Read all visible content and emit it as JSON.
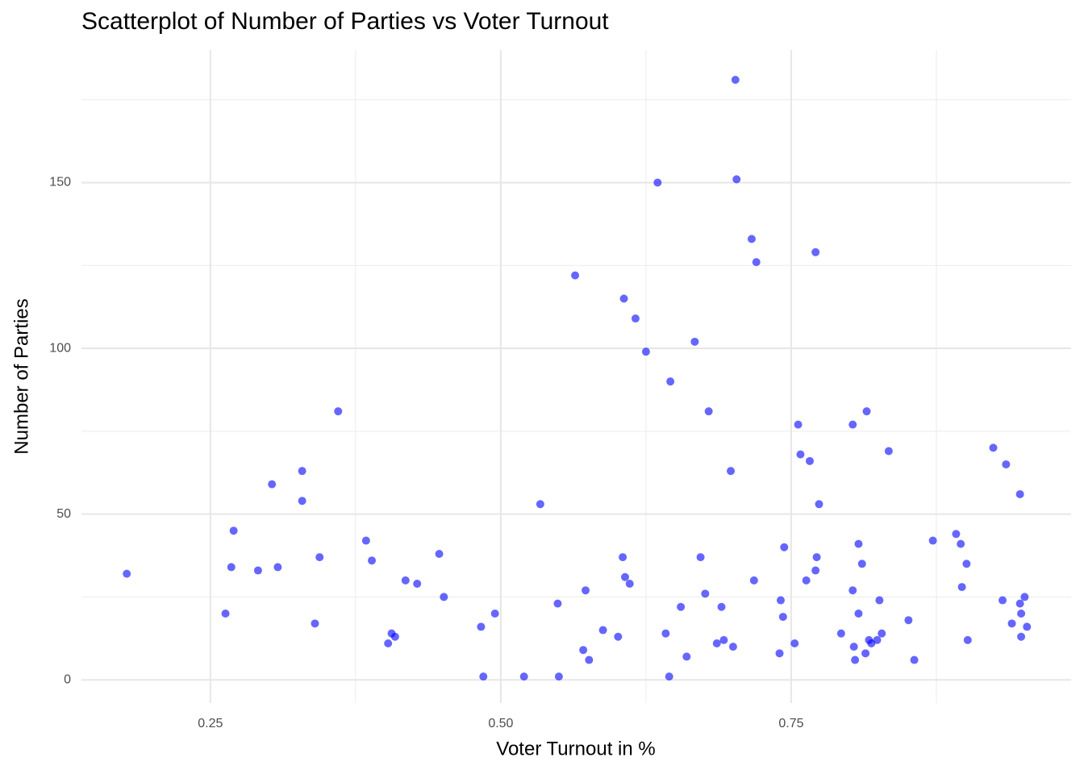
{
  "chart_data": {
    "type": "scatter",
    "title": "Scatterplot of Number of Parties vs Voter Turnout",
    "x_label": "Voter Turnout in %",
    "y_label": "Number of Parties",
    "color": "#0000ff",
    "opacity": 0.6,
    "grid": true,
    "xlim": [
      0.139,
      0.991
    ],
    "ylim": [
      -7,
      190
    ],
    "xticks": [
      0.25,
      {
        "value": 0.5,
        "label": "0.50"
      },
      0.75
    ],
    "yticks": [
      0,
      50,
      100,
      150
    ],
    "x_minor_grid": [
      0.375,
      0.625,
      0.875
    ],
    "y_minor_grid": [
      25,
      75,
      125,
      175
    ],
    "x": [
      0.178,
      0.263,
      0.268,
      0.27,
      0.291,
      0.303,
      0.308,
      0.329,
      0.329,
      0.34,
      0.344,
      0.36,
      0.384,
      0.389,
      0.403,
      0.406,
      0.409,
      0.418,
      0.428,
      0.447,
      0.451,
      0.483,
      0.485,
      0.495,
      0.52,
      0.534,
      0.549,
      0.55,
      0.564,
      0.571,
      0.573,
      0.576,
      0.588,
      0.601,
      0.605,
      0.606,
      0.607,
      0.611,
      0.616,
      0.625,
      0.635,
      0.642,
      0.645,
      0.646,
      0.655,
      0.66,
      0.667,
      0.672,
      0.676,
      0.679,
      0.686,
      0.69,
      0.692,
      0.698,
      0.7,
      0.702,
      0.703,
      0.716,
      0.718,
      0.72,
      0.74,
      0.741,
      0.743,
      0.744,
      0.753,
      0.756,
      0.758,
      0.763,
      0.766,
      0.771,
      0.771,
      0.772,
      0.774,
      0.793,
      0.803,
      0.803,
      0.804,
      0.805,
      0.808,
      0.808,
      0.811,
      0.814,
      0.815,
      0.817,
      0.819,
      0.824,
      0.826,
      0.828,
      0.834,
      0.851,
      0.856,
      0.872,
      0.892,
      0.896,
      0.897,
      0.901,
      0.902,
      0.924,
      0.932,
      0.935,
      0.94,
      0.947,
      0.947,
      0.948,
      0.948,
      0.951,
      0.953
    ],
    "values": [
      32,
      20,
      34,
      45,
      33,
      59,
      34,
      54,
      63,
      17,
      37,
      81,
      42,
      36,
      11,
      14,
      13,
      30,
      29,
      38,
      25,
      16,
      1,
      20,
      1,
      53,
      23,
      1,
      122,
      9,
      27,
      6,
      15,
      13,
      37,
      115,
      31,
      29,
      109,
      99,
      150,
      14,
      1,
      90,
      22,
      7,
      102,
      37,
      26,
      81,
      11,
      22,
      12,
      63,
      10,
      181,
      151,
      133,
      30,
      126,
      8,
      24,
      19,
      40,
      11,
      77,
      68,
      30,
      66,
      33,
      129,
      37,
      53,
      14,
      77,
      27,
      10,
      6,
      20,
      41,
      35,
      8,
      81,
      12,
      11,
      12,
      24,
      14,
      69,
      18,
      6,
      42,
      44,
      41,
      28,
      35,
      12,
      70,
      24,
      65,
      17,
      23,
      56,
      13,
      20,
      25,
      16
    ]
  }
}
